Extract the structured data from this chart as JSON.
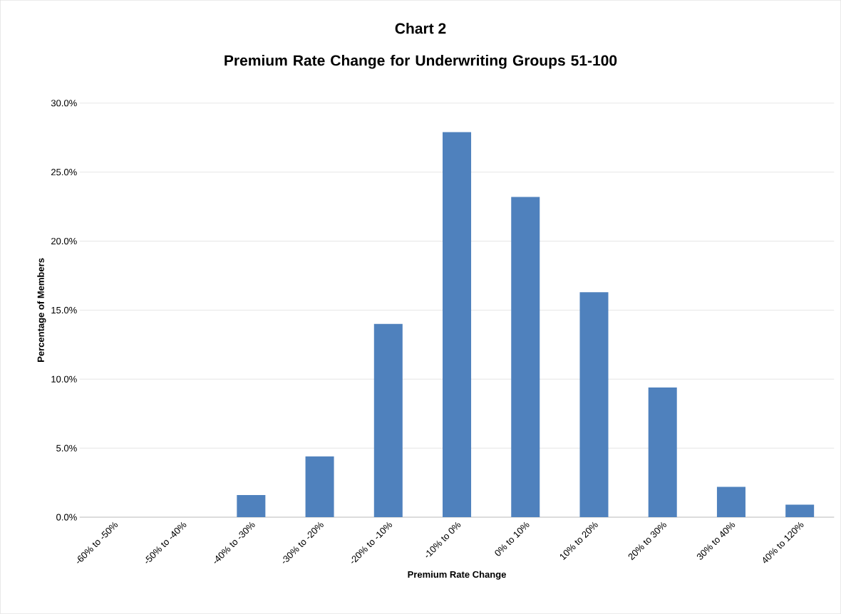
{
  "chart_data": {
    "type": "bar",
    "title": "Chart 2",
    "subtitle": "Premium Rate Change for Underwriting Groups 51-100",
    "xlabel": "Premium Rate Change",
    "ylabel": "Percentage of Members",
    "categories": [
      "-60% to -50%",
      "-50% to -40%",
      "-40% to -30%",
      "-30% to -20%",
      "-20% to -10%",
      "-10% to 0%",
      "0% to 10%",
      "10% to 20%",
      "20% to 30%",
      "30% to 40%",
      "40% to 120%"
    ],
    "values": [
      0,
      0,
      1.6,
      4.4,
      14.0,
      27.9,
      23.2,
      16.3,
      9.4,
      2.2,
      0.9
    ],
    "color": "#4f81bd",
    "ylim": [
      0,
      30
    ],
    "yticks": [
      {
        "value": 0,
        "label": "0.0%"
      },
      {
        "value": 5,
        "label": "5.0%"
      },
      {
        "value": 10,
        "label": "10.0%"
      },
      {
        "value": 15,
        "label": "15.0%"
      },
      {
        "value": 20,
        "label": "20.0%"
      },
      {
        "value": 25,
        "label": "25.0%"
      },
      {
        "value": 30,
        "label": "30.0%"
      }
    ],
    "grid": "y"
  }
}
